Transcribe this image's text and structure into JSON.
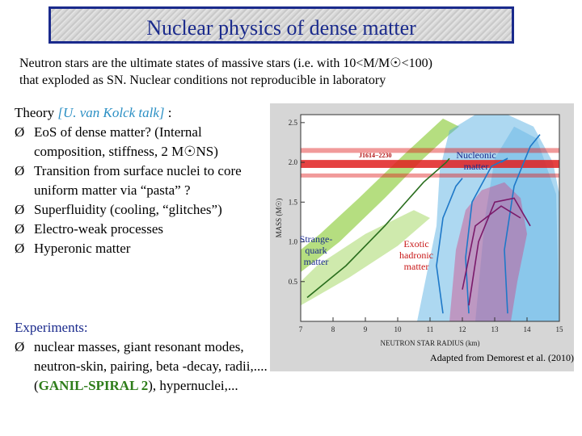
{
  "slide": {
    "title": "Nuclear physics of dense matter",
    "intro": {
      "line1": "Neutron stars are the ultimate states of massive stars (i.e. with 10<M/M☉<100)",
      "line2": "that exploded as SN. Nuclear conditions not reproducible in laboratory"
    },
    "theory": {
      "label": "Theory ",
      "talk": "[U. van Kolck talk]",
      "suffix": " :",
      "bullets": [
        "EoS of dense matter? (Internal composition,  stiffness, 2 M☉NS)",
        "Transition from surface nuclei to core uniform matter via “pasta” ?",
        "Superfluidity (cooling, “glitches”)",
        "Electro-weak processes",
        "Hyperonic matter"
      ]
    },
    "experiments": {
      "heading": "Experiments:",
      "bullet_pre": "nuclear masses, giant resonant modes, neutron-skin, pairing, beta -decay, radii,.... (",
      "bullet_highlight": "GANIL-SPIRAL 2",
      "bullet_post": "), hypernuclei,..."
    },
    "bullet_glyph": "Ø",
    "caption": "Adapted from Demorest et al. (2010)"
  },
  "chart_data": {
    "type": "area",
    "title": "",
    "xlabel": "NEUTRON STAR RADIUS (km)",
    "ylabel": "MASS (M☉)",
    "xlim": [
      7,
      15
    ],
    "ylim": [
      0,
      2.6
    ],
    "x_ticks": [
      "7",
      "8",
      "9",
      "10",
      "11",
      "12",
      "13",
      "14",
      "15"
    ],
    "y_ticks": [
      "0.5",
      "1.0",
      "1.5",
      "2.0",
      "2.5"
    ],
    "band_label": "J1614−2230",
    "band_mass": [
      1.93,
      2.03
    ],
    "region_labels": {
      "nucleonic": "Nucleonic matter",
      "strange": "Strange-quark matter",
      "exotic": "Exotic hadronic matter"
    },
    "colors": {
      "nucleonic": "#4aa8e0",
      "strange": "#a8d86a",
      "exotic": "#d43a7c",
      "band": "#e02020",
      "label_blue": "#1a2a8c",
      "label_red": "#c81818"
    }
  }
}
